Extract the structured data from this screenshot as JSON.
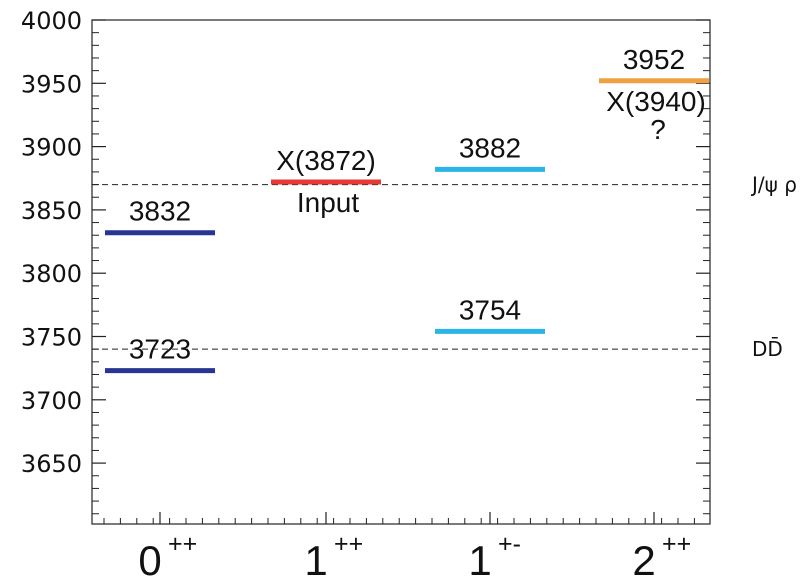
{
  "chart_data": {
    "type": "level-diagram",
    "ylim": [
      3600,
      4000
    ],
    "y_ticks": [
      3650,
      3700,
      3750,
      3800,
      3850,
      3900,
      3950,
      4000
    ],
    "categories": [
      {
        "base": "0",
        "sup": "++"
      },
      {
        "base": "1",
        "sup": "++"
      },
      {
        "base": "1",
        "sup": "+-"
      },
      {
        "base": "2",
        "sup": "++"
      }
    ],
    "levels": [
      {
        "category": 0,
        "value": 3832,
        "label": "3832",
        "color": "#283593"
      },
      {
        "category": 0,
        "value": 3723,
        "label": "3723",
        "color": "#283593"
      },
      {
        "category": 1,
        "value": 3872,
        "label": "X(3872)",
        "note": "Input",
        "color": "#e53935"
      },
      {
        "category": 2,
        "value": 3882,
        "label": "3882",
        "color": "#29b6e6"
      },
      {
        "category": 2,
        "value": 3754,
        "label": "3754",
        "color": "#29b6e6"
      },
      {
        "category": 3,
        "value": 3952,
        "label": "3952",
        "note": "X(3940)",
        "note2": "?",
        "color": "#f0a040"
      }
    ],
    "thresholds": [
      {
        "value": 3870,
        "label": "J/ψ ρ"
      },
      {
        "value": 3740,
        "label": "DD̄"
      }
    ],
    "grid": false
  }
}
